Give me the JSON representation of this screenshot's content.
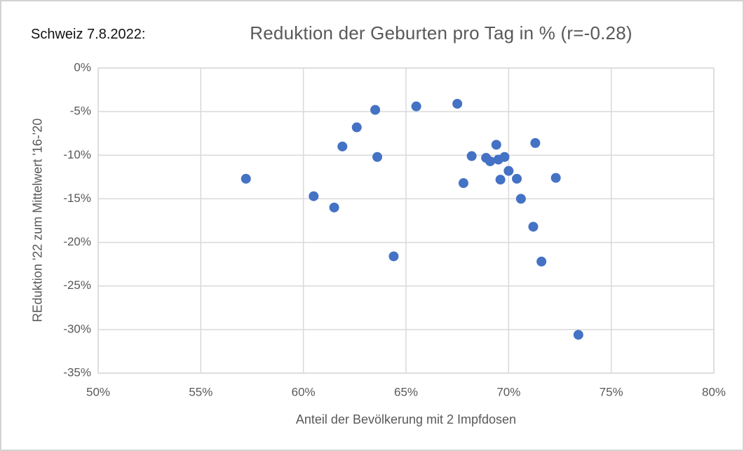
{
  "frame": {
    "background": "#ffffff",
    "border_color": "#d2d2d2"
  },
  "header": {
    "corner_label": "Schweiz 7.8.2022:",
    "title": "Reduktion der Geburten pro Tag in % (r=-0.28)"
  },
  "chart_data": {
    "type": "scatter",
    "title": "Reduktion der Geburten pro Tag in % (r=-0.28)",
    "corner_annotation": "Schweiz 7.8.2022:",
    "xlabel": "Anteil der Bevölkerung mit 2 Impfdosen",
    "ylabel": "REduktion '22 zum Mittelwert '16-'20",
    "xlim": [
      50,
      80
    ],
    "ylim": [
      -35,
      0
    ],
    "grid": true,
    "legend_position": "none",
    "grid_color": "#d9d9d9",
    "text_color": "#595959",
    "marker": {
      "color": "#4472C4",
      "radius": 7
    },
    "x_ticks": [
      {
        "value": 50,
        "label": "50%"
      },
      {
        "value": 55,
        "label": "55%"
      },
      {
        "value": 60,
        "label": "60%"
      },
      {
        "value": 65,
        "label": "65%"
      },
      {
        "value": 70,
        "label": "70%"
      },
      {
        "value": 75,
        "label": "75%"
      },
      {
        "value": 80,
        "label": "80%"
      }
    ],
    "y_ticks": [
      {
        "value": 0,
        "label": "0%"
      },
      {
        "value": -5,
        "label": "-5%"
      },
      {
        "value": -10,
        "label": "-10%"
      },
      {
        "value": -15,
        "label": "-15%"
      },
      {
        "value": -20,
        "label": "-20%"
      },
      {
        "value": -25,
        "label": "-25%"
      },
      {
        "value": -30,
        "label": "-30%"
      },
      {
        "value": -35,
        "label": "-35%"
      }
    ],
    "points": [
      [
        57.2,
        -12.7
      ],
      [
        60.5,
        -14.7
      ],
      [
        61.5,
        -16.0
      ],
      [
        61.9,
        -9.0
      ],
      [
        62.6,
        -6.8
      ],
      [
        63.5,
        -4.8
      ],
      [
        63.6,
        -10.2
      ],
      [
        64.4,
        -21.6
      ],
      [
        65.5,
        -4.4
      ],
      [
        67.5,
        -4.1
      ],
      [
        67.8,
        -13.2
      ],
      [
        68.2,
        -10.1
      ],
      [
        68.9,
        -10.3
      ],
      [
        69.1,
        -10.7
      ],
      [
        69.4,
        -8.8
      ],
      [
        69.5,
        -10.5
      ],
      [
        69.6,
        -12.8
      ],
      [
        69.8,
        -10.2
      ],
      [
        70.0,
        -11.8
      ],
      [
        70.4,
        -12.7
      ],
      [
        70.6,
        -15.0
      ],
      [
        71.2,
        -18.2
      ],
      [
        71.3,
        -8.6
      ],
      [
        71.6,
        -22.2
      ],
      [
        72.3,
        -12.6
      ],
      [
        73.4,
        -30.6
      ]
    ]
  }
}
